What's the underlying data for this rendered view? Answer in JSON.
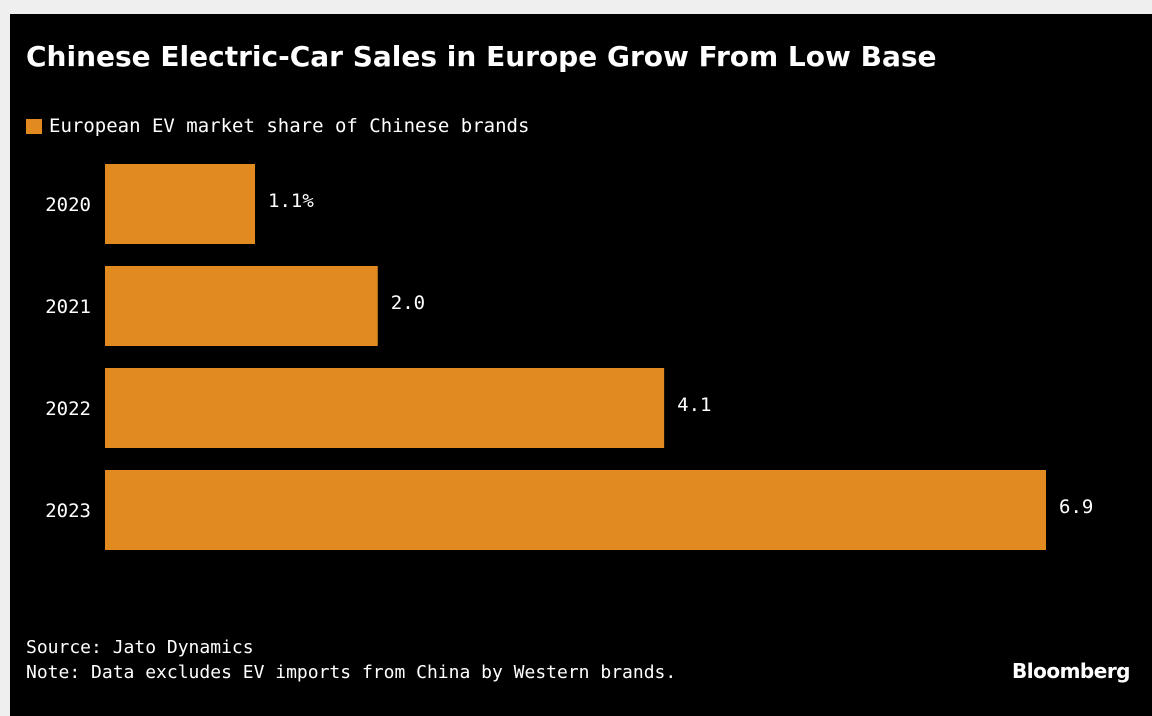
{
  "chart_data": {
    "type": "bar",
    "orientation": "horizontal",
    "title": "Chinese Electric-Car Sales in Europe Grow From Low Base",
    "legend_position": "top-left",
    "series": [
      {
        "name": "European EV market share of Chinese brands",
        "color": "#e08a20",
        "values": [
          1.1,
          2.0,
          4.1,
          6.9
        ]
      }
    ],
    "categories": [
      "2020",
      "2021",
      "2022",
      "2023"
    ],
    "value_labels": [
      "1.1%",
      "2.0",
      "4.1",
      "6.9"
    ],
    "xlim": [
      0,
      6.9
    ],
    "grid": false,
    "xlabel": "",
    "ylabel": ""
  },
  "footer": {
    "source": "Source: Jato Dynamics",
    "note": "Note: Data excludes EV imports from China by Western brands."
  },
  "brand": "Bloomberg",
  "colors": {
    "background": "#000000",
    "page": "#efefef",
    "bar": "#e08a20",
    "text": "#ffffff"
  }
}
